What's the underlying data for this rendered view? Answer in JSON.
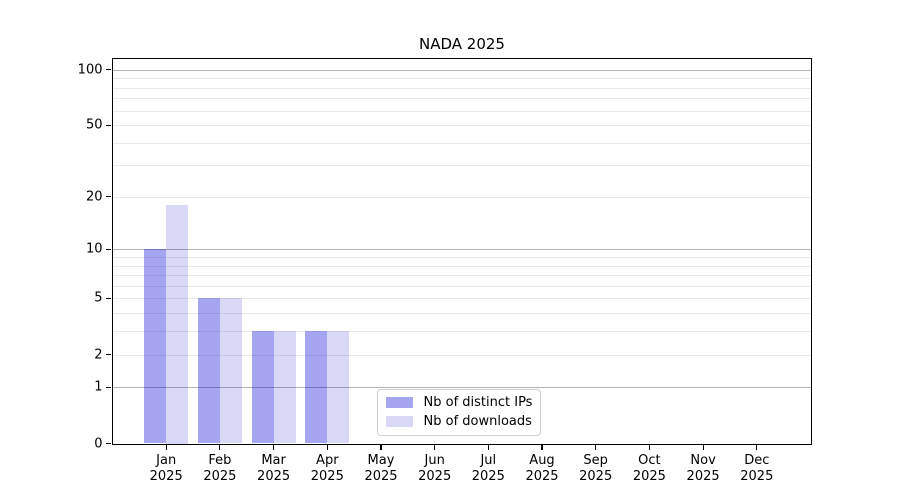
{
  "chart_data": {
    "type": "bar",
    "title": "NADA 2025",
    "year": "2025",
    "months": [
      "Jan",
      "Feb",
      "Mar",
      "Apr",
      "May",
      "Jun",
      "Jul",
      "Aug",
      "Sep",
      "Oct",
      "Nov",
      "Dec"
    ],
    "series": [
      {
        "name": "Nb of distinct IPs",
        "color": "#aaaaef",
        "fill": "rgba(0,0,212,0.35)",
        "values": [
          10,
          5,
          3,
          3,
          0,
          0,
          0,
          0,
          0,
          0,
          0,
          0
        ]
      },
      {
        "name": "Nb of downloads",
        "color": "#d8d8f9",
        "fill": "rgba(0,0,202,0.15)",
        "values": [
          18,
          5,
          3,
          3,
          0,
          0,
          0,
          0,
          0,
          0,
          0,
          0
        ]
      }
    ],
    "yscale": "log1p",
    "ylim": [
      0,
      115
    ],
    "yticks": [
      {
        "v": 0,
        "label": "0"
      },
      {
        "v": 1,
        "label": "1"
      },
      {
        "v": 2,
        "label": "2"
      },
      {
        "v": 5,
        "label": "5"
      },
      {
        "v": 10,
        "label": "10"
      },
      {
        "v": 20,
        "label": "20"
      },
      {
        "v": 50,
        "label": "50"
      },
      {
        "v": 100,
        "label": "100"
      }
    ],
    "major_gridlines": [
      1,
      10,
      100
    ],
    "minor_gridlines": [
      2,
      3,
      4,
      5,
      6,
      7,
      8,
      9,
      20,
      30,
      40,
      50,
      60,
      70,
      80,
      90
    ],
    "grid": true,
    "legend_position": "lower center",
    "colors": {
      "major_grid": "#b3b3b3",
      "minor_grid": "#eaeaea",
      "spine": "#000000",
      "text": "#000000",
      "legend_border": "#d0d0d0"
    }
  }
}
